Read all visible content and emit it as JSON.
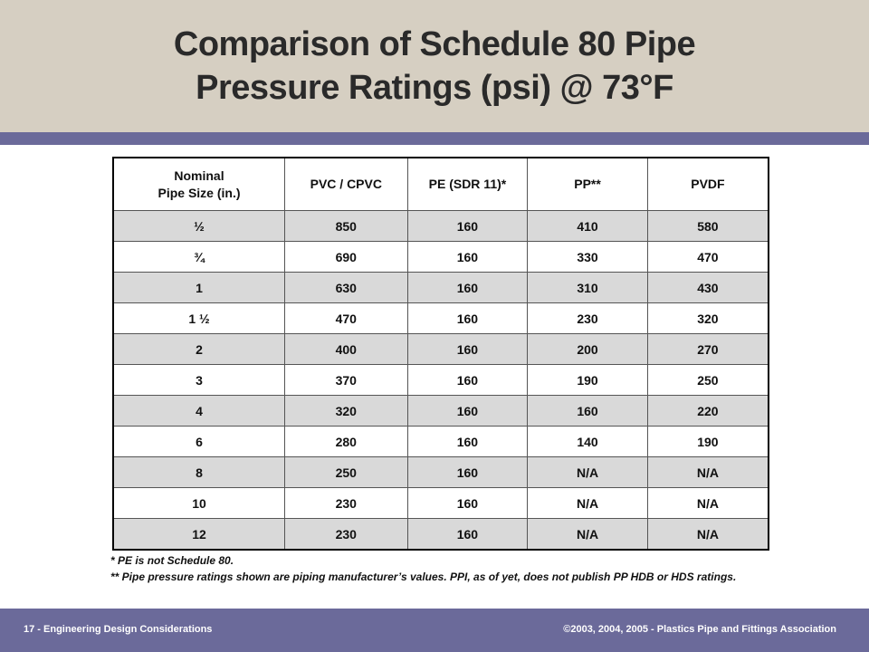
{
  "title": {
    "line1": "Comparison of Schedule 80 Pipe",
    "line2": "Pressure Ratings (psi) @ 73°F"
  },
  "table": {
    "headers": {
      "size_line1": "Nominal",
      "size_line2": "Pipe Size (in.)",
      "pvc": "PVC / CPVC",
      "pe": "PE (SDR 11)*",
      "pp": "PP**",
      "pvdf": "PVDF"
    },
    "rows": [
      {
        "size": "½",
        "pvc": "850",
        "pe": "160",
        "pp": "410",
        "pvdf": "580"
      },
      {
        "size": "¾",
        "pvc": "690",
        "pe": "160",
        "pp": "330",
        "pvdf": "470"
      },
      {
        "size": "1",
        "pvc": "630",
        "pe": "160",
        "pp": "310",
        "pvdf": "430"
      },
      {
        "size": "1 ½",
        "pvc": "470",
        "pe": "160",
        "pp": "230",
        "pvdf": "320"
      },
      {
        "size": "2",
        "pvc": "400",
        "pe": "160",
        "pp": "200",
        "pvdf": "270"
      },
      {
        "size": "3",
        "pvc": "370",
        "pe": "160",
        "pp": "190",
        "pvdf": "250"
      },
      {
        "size": "4",
        "pvc": "320",
        "pe": "160",
        "pp": "160",
        "pvdf": "220"
      },
      {
        "size": "6",
        "pvc": "280",
        "pe": "160",
        "pp": "140",
        "pvdf": "190"
      },
      {
        "size": "8",
        "pvc": "250",
        "pe": "160",
        "pp": "N/A",
        "pvdf": "N/A"
      },
      {
        "size": "10",
        "pvc": "230",
        "pe": "160",
        "pp": "N/A",
        "pvdf": "N/A"
      },
      {
        "size": "12",
        "pvc": "230",
        "pe": "160",
        "pp": "N/A",
        "pvdf": "N/A"
      }
    ]
  },
  "footnotes": {
    "note1": "*  PE is not Schedule 80.",
    "note2": "** Pipe pressure  ratings shown are piping manufacturer’s  values. PPI, as of yet, does not publish PP HDB or HDS ratings."
  },
  "footer": {
    "left": "17 - Engineering Design Considerations",
    "right": "©2003, 2004, 2005 - Plastics Pipe and Fittings Association"
  },
  "colors": {
    "title_band": "#d6cfc2",
    "accent": "#6b6a9a",
    "row_shade": "#d9d9d9"
  }
}
